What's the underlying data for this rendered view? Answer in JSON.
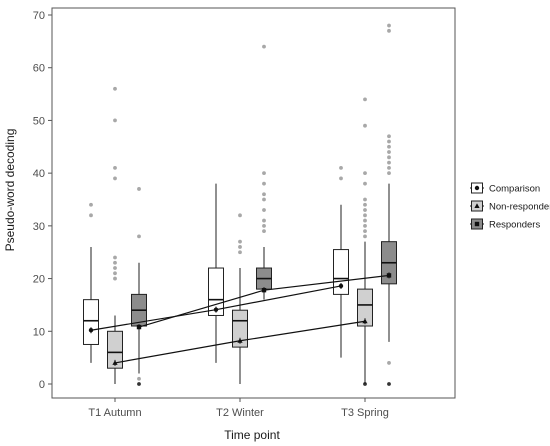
{
  "chart_data": {
    "type": "box",
    "xlabel": "Time point",
    "ylabel": "Pseudo-word decoding",
    "ylim": [
      0,
      70
    ],
    "yticks": [
      0,
      10,
      20,
      30,
      40,
      50,
      60,
      70
    ],
    "categories": [
      "T1 Autumn",
      "T2 Winter",
      "T3 Spring"
    ],
    "legend_position": "right",
    "grid": false,
    "series": [
      {
        "name": "Comparison",
        "fill": "#ffffff",
        "marker": "circle",
        "boxes": [
          {
            "whisker_low": 4,
            "q1": 7.5,
            "median": 12,
            "q3": 16,
            "whisker_high": 26,
            "outliers": [
              32,
              34
            ]
          },
          {
            "whisker_low": 4,
            "q1": 13,
            "median": 16,
            "q3": 22,
            "whisker_high": 38,
            "outliers": []
          },
          {
            "whisker_low": 5,
            "q1": 17,
            "median": 20,
            "q3": 25.5,
            "whisker_high": 34,
            "outliers": [
              39,
              41
            ]
          }
        ],
        "means": [
          10.2,
          14.1,
          18.6
        ]
      },
      {
        "name": "Non-responders",
        "fill": "#d0d0d0",
        "marker": "triangle",
        "boxes": [
          {
            "whisker_low": 0,
            "q1": 3,
            "median": 6,
            "q3": 10,
            "whisker_high": 13,
            "outliers": [
              20,
              21,
              22,
              23,
              24,
              39,
              41,
              50,
              56
            ]
          },
          {
            "whisker_low": 0,
            "q1": 7,
            "median": 12,
            "q3": 14,
            "whisker_high": 22,
            "outliers": [
              25,
              26,
              27,
              32
            ]
          },
          {
            "whisker_low": 0,
            "q1": 11,
            "median": 15,
            "q3": 18,
            "whisker_high": 27,
            "outliers": [
              0,
              28,
              29,
              30,
              31,
              32,
              33,
              34,
              35,
              38,
              40,
              49,
              54
            ]
          }
        ],
        "means": [
          4,
          8.2,
          11.9
        ]
      },
      {
        "name": "Responders",
        "fill": "#8c8c8c",
        "marker": "square",
        "boxes": [
          {
            "whisker_low": 2,
            "q1": 11,
            "median": 14,
            "q3": 17,
            "whisker_high": 23,
            "outliers": [
              0,
              1,
              28,
              37
            ]
          },
          {
            "whisker_low": 16,
            "q1": 18,
            "median": 20,
            "q3": 22,
            "whisker_high": 26,
            "outliers": [
              29,
              30,
              31,
              33,
              35,
              36,
              38,
              40,
              64
            ]
          },
          {
            "whisker_low": 8,
            "q1": 19,
            "median": 23,
            "q3": 27,
            "whisker_high": 38,
            "outliers": [
              0,
              4,
              40,
              41,
              42,
              43,
              44,
              45,
              46,
              47,
              67,
              68
            ]
          }
        ],
        "means": [
          10.8,
          17.8,
          20.6
        ]
      }
    ]
  }
}
